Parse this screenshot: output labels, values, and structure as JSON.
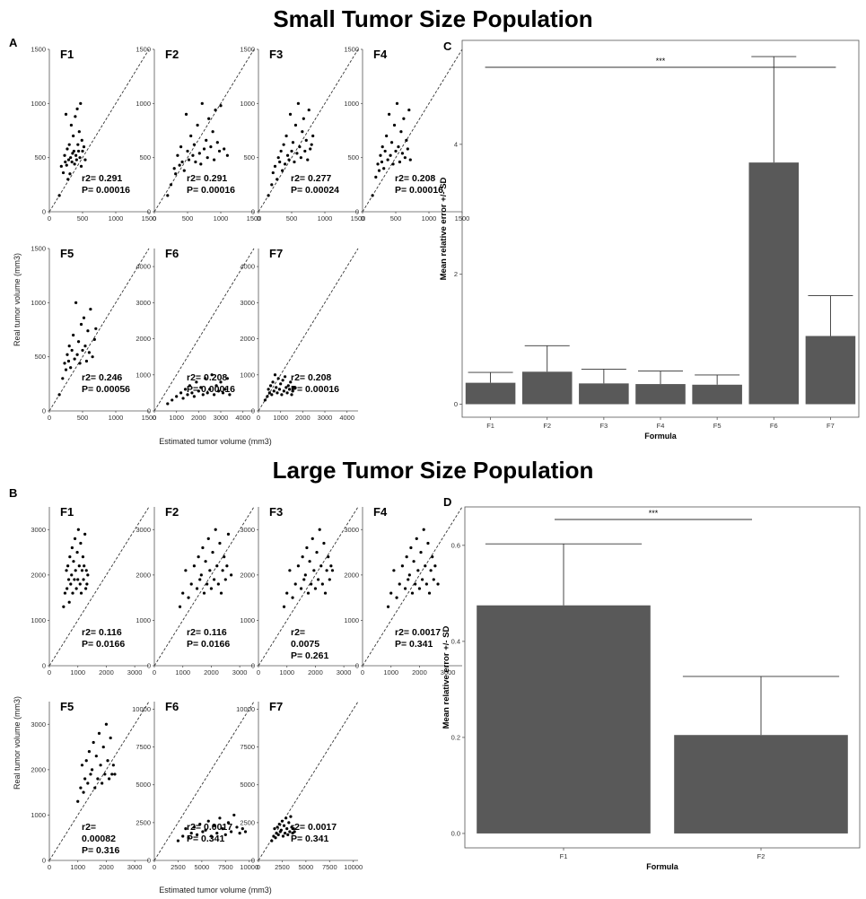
{
  "page": {
    "section_small_title": "Small Tumor Size Population",
    "section_large_title": "Large Tumor Size Population",
    "panel_a": "A",
    "panel_b": "B",
    "panel_c": "C",
    "panel_d": "D",
    "scatter_ylabel": "Real tumor volume (mm3)",
    "scatter_xlabel": "Estimated tumor volume (mm3)"
  },
  "chart_data": [
    {
      "type": "scatter",
      "group": "A",
      "panel": "F1",
      "label": "F1",
      "xlim": [
        0,
        1500
      ],
      "ylim": [
        0,
        1500
      ],
      "xticks": [
        "0",
        "500",
        "1000",
        "1500"
      ],
      "yticks": [
        "0",
        "500",
        "1000",
        "1500"
      ],
      "x": [
        150,
        180,
        210,
        230,
        240,
        250,
        260,
        270,
        280,
        290,
        300,
        310,
        320,
        330,
        340,
        350,
        360,
        370,
        380,
        390,
        400,
        410,
        420,
        430,
        440,
        450,
        460,
        470,
        480,
        490,
        500,
        520,
        540
      ],
      "y": [
        150,
        420,
        360,
        520,
        460,
        900,
        430,
        580,
        300,
        480,
        620,
        350,
        500,
        800,
        460,
        540,
        700,
        560,
        440,
        880,
        520,
        480,
        950,
        620,
        560,
        740,
        500,
        1000,
        420,
        660,
        560,
        600,
        480
      ],
      "r2": "r2= 0.291",
      "p": "P= 0.00016"
    },
    {
      "type": "scatter",
      "group": "A",
      "panel": "F2",
      "label": "F2",
      "xlim": [
        0,
        1500
      ],
      "ylim": [
        0,
        1500
      ],
      "xticks": [
        "0",
        "500",
        "1000",
        "1500"
      ],
      "yticks": [
        "0",
        "500",
        "1000",
        "1500"
      ],
      "x": [
        200,
        250,
        300,
        320,
        350,
        380,
        400,
        420,
        450,
        480,
        500,
        520,
        550,
        580,
        600,
        620,
        650,
        680,
        700,
        720,
        750,
        780,
        800,
        820,
        850,
        880,
        900,
        920,
        950,
        980,
        1000,
        1050,
        1100
      ],
      "y": [
        150,
        250,
        400,
        350,
        520,
        430,
        600,
        460,
        380,
        900,
        560,
        480,
        700,
        520,
        620,
        460,
        800,
        540,
        440,
        1000,
        580,
        660,
        500,
        860,
        600,
        740,
        480,
        940,
        640,
        560,
        980,
        580,
        520
      ],
      "r2": "r2= 0.291",
      "p": "P= 0.00016"
    },
    {
      "type": "scatter",
      "group": "A",
      "panel": "F3",
      "label": "F3",
      "xlim": [
        0,
        1500
      ],
      "ylim": [
        0,
        1500
      ],
      "xticks": [
        "0",
        "500",
        "1000",
        "1500"
      ],
      "yticks": [
        "0",
        "500",
        "1000",
        "1500"
      ],
      "x": [
        150,
        200,
        220,
        250,
        280,
        300,
        320,
        340,
        360,
        380,
        400,
        420,
        440,
        460,
        480,
        500,
        520,
        540,
        560,
        580,
        600,
        620,
        640,
        660,
        680,
        700,
        720,
        740,
        760,
        780,
        800,
        820
      ],
      "y": [
        150,
        250,
        360,
        420,
        300,
        500,
        460,
        560,
        380,
        620,
        440,
        700,
        520,
        480,
        900,
        560,
        640,
        460,
        800,
        540,
        1000,
        600,
        500,
        740,
        860,
        560,
        660,
        480,
        940,
        580,
        620,
        700
      ],
      "r2": "r2= 0.277",
      "p": "P= 0.00024"
    },
    {
      "type": "scatter",
      "group": "A",
      "panel": "F4",
      "label": "F4",
      "xlim": [
        0,
        1500
      ],
      "ylim": [
        0,
        1500
      ],
      "xticks": [
        "0",
        "500",
        "1000",
        "1500"
      ],
      "yticks": [
        "0",
        "500",
        "1000",
        "1500"
      ],
      "x": [
        150,
        200,
        230,
        250,
        270,
        290,
        300,
        320,
        340,
        360,
        380,
        400,
        420,
        440,
        460,
        480,
        500,
        520,
        540,
        560,
        580,
        600,
        620,
        640,
        660,
        680,
        700,
        720
      ],
      "y": [
        150,
        320,
        440,
        380,
        520,
        460,
        600,
        400,
        560,
        700,
        480,
        900,
        520,
        640,
        440,
        800,
        560,
        1000,
        600,
        460,
        740,
        540,
        860,
        500,
        660,
        580,
        940,
        480
      ],
      "r2": "r2= 0.208",
      "p": "P= 0.00016"
    },
    {
      "type": "scatter",
      "group": "A",
      "panel": "F5",
      "label": "F5",
      "xlim": [
        0,
        1500
      ],
      "ylim": [
        0,
        1500
      ],
      "xticks": [
        "0",
        "500",
        "1000",
        "1500"
      ],
      "yticks": [
        "0",
        "500",
        "1000",
        "1500"
      ],
      "x": [
        150,
        200,
        230,
        250,
        270,
        290,
        300,
        320,
        340,
        360,
        380,
        400,
        420,
        440,
        460,
        480,
        500,
        520,
        540,
        560,
        580,
        600,
        620,
        650,
        680,
        700
      ],
      "y": [
        150,
        300,
        440,
        380,
        520,
        460,
        600,
        400,
        560,
        700,
        480,
        1000,
        520,
        640,
        440,
        800,
        560,
        860,
        600,
        460,
        740,
        540,
        940,
        500,
        660,
        760
      ],
      "r2": "r2= 0.246",
      "p": "P= 0.00056"
    },
    {
      "type": "scatter",
      "group": "A",
      "panel": "F6",
      "label": "F6",
      "xlim": [
        0,
        4500
      ],
      "ylim": [
        0,
        4500
      ],
      "xticks": [
        "0",
        "1000",
        "2000",
        "3000",
        "4000"
      ],
      "yticks": [
        "0",
        "1000",
        "2000",
        "3000",
        "4000"
      ],
      "x": [
        600,
        800,
        1000,
        1200,
        1300,
        1400,
        1500,
        1600,
        1700,
        1800,
        1900,
        2000,
        2100,
        2200,
        2300,
        2400,
        2500,
        2600,
        2700,
        2800,
        2900,
        3000,
        3100,
        3200,
        3300,
        3400
      ],
      "y": [
        200,
        300,
        400,
        500,
        350,
        600,
        450,
        700,
        500,
        400,
        800,
        550,
        650,
        450,
        900,
        500,
        600,
        1000,
        450,
        700,
        550,
        800,
        500,
        600,
        900,
        450
      ],
      "r2": "r2= 0.208",
      "p": "P= 0.00016"
    },
    {
      "type": "scatter",
      "group": "A",
      "panel": "F7",
      "label": "F7",
      "xlim": [
        0,
        4500
      ],
      "ylim": [
        0,
        4500
      ],
      "xticks": [
        "0",
        "1000",
        "2000",
        "3000",
        "4000"
      ],
      "yticks": [
        "0",
        "1000",
        "2000",
        "3000",
        "4000"
      ],
      "x": [
        300,
        400,
        450,
        500,
        550,
        600,
        650,
        700,
        750,
        800,
        850,
        900,
        950,
        1000,
        1050,
        1100,
        1150,
        1200,
        1250,
        1300,
        1350,
        1400,
        1450,
        1500,
        1550,
        1600
      ],
      "y": [
        300,
        400,
        600,
        500,
        700,
        450,
        800,
        550,
        1000,
        650,
        500,
        900,
        600,
        750,
        450,
        850,
        550,
        950,
        650,
        500,
        700,
        600,
        800,
        450,
        550,
        650
      ],
      "r2": "r2= 0.208",
      "p": "P= 0.00016"
    },
    {
      "type": "bar",
      "group": "C",
      "panel": "C",
      "categories": [
        "F1",
        "F2",
        "F3",
        "F4",
        "F5",
        "F6",
        "F7"
      ],
      "values": [
        0.33,
        0.5,
        0.32,
        0.31,
        0.3,
        3.72,
        1.05
      ],
      "errors": [
        0.16,
        0.4,
        0.22,
        0.2,
        0.15,
        1.63,
        0.62
      ],
      "ylim": [
        -0.2,
        5.6
      ],
      "yticks": [
        "0",
        "2",
        "4"
      ],
      "xlabel": "Formula",
      "ylabel": "Mean relative error +/- SD",
      "significance": "***"
    },
    {
      "type": "scatter",
      "group": "B",
      "panel": "F1",
      "label": "F1",
      "xlim": [
        0,
        3500
      ],
      "ylim": [
        0,
        3500
      ],
      "xticks": [
        "0",
        "1000",
        "2000",
        "3000"
      ],
      "yticks": [
        "0",
        "1000",
        "2000",
        "3000"
      ],
      "x": [
        500,
        550,
        600,
        620,
        650,
        680,
        700,
        720,
        750,
        780,
        800,
        820,
        850,
        880,
        900,
        920,
        950,
        980,
        1000,
        1020,
        1050,
        1080,
        1100,
        1120,
        1150,
        1180,
        1200,
        1220,
        1250,
        1280,
        1300,
        1320,
        1350
      ],
      "y": [
        1300,
        1600,
        2100,
        1700,
        2200,
        1900,
        1400,
        2400,
        1800,
        2000,
        2600,
        1600,
        2300,
        1900,
        2800,
        2100,
        1700,
        2500,
        1900,
        3000,
        2200,
        1800,
        2700,
        1600,
        2100,
        2400,
        1900,
        2200,
        2900,
        1700,
        2100,
        1800,
        2000
      ],
      "r2": "r2= 0.116",
      "p": "P= 0.0166"
    },
    {
      "type": "scatter",
      "group": "B",
      "panel": "F2",
      "label": "F2",
      "xlim": [
        0,
        3500
      ],
      "ylim": [
        0,
        3500
      ],
      "xticks": [
        "0",
        "1000",
        "2000",
        "3000"
      ],
      "yticks": [
        "0",
        "1000",
        "2000",
        "3000"
      ],
      "x": [
        900,
        1000,
        1100,
        1200,
        1300,
        1400,
        1500,
        1550,
        1600,
        1650,
        1700,
        1750,
        1800,
        1850,
        1900,
        1950,
        2000,
        2050,
        2100,
        2150,
        2200,
        2250,
        2300,
        2350,
        2400,
        2450,
        2500,
        2550,
        2600,
        2700
      ],
      "y": [
        1300,
        1600,
        2100,
        1500,
        1800,
        2200,
        1700,
        2400,
        1900,
        2000,
        2600,
        1600,
        2300,
        1800,
        2800,
        2100,
        1700,
        2500,
        1900,
        3000,
        2200,
        1800,
        2700,
        1600,
        2100,
        2400,
        1900,
        2200,
        2900,
        2000
      ],
      "r2": "r2= 0.116",
      "p": "P= 0.0166"
    },
    {
      "type": "scatter",
      "group": "B",
      "panel": "F3",
      "label": "F3",
      "xlim": [
        0,
        3500
      ],
      "ylim": [
        0,
        3500
      ],
      "xticks": [
        "0",
        "1000",
        "2000",
        "3000"
      ],
      "yticks": [
        "0",
        "1000",
        "2000",
        "3000"
      ],
      "x": [
        900,
        1000,
        1100,
        1200,
        1300,
        1400,
        1500,
        1550,
        1600,
        1650,
        1700,
        1750,
        1800,
        1850,
        1900,
        1950,
        2000,
        2050,
        2100,
        2150,
        2200,
        2250,
        2300,
        2350,
        2400,
        2450,
        2500,
        2550,
        2600
      ],
      "y": [
        1300,
        1600,
        2100,
        1500,
        1800,
        2200,
        1700,
        2400,
        1900,
        2000,
        2600,
        1600,
        2300,
        1800,
        2800,
        2100,
        1700,
        2500,
        1900,
        3000,
        2200,
        1800,
        2700,
        1600,
        2100,
        2400,
        1900,
        2200,
        2100
      ],
      "r2": "r2=",
      "p": "0.0075",
      "p2": "P= 0.261"
    },
    {
      "type": "scatter",
      "group": "B",
      "panel": "F4",
      "label": "F4",
      "xlim": [
        0,
        3500
      ],
      "ylim": [
        0,
        3500
      ],
      "xticks": [
        "0",
        "1000",
        "2000",
        "3000"
      ],
      "yticks": [
        "0",
        "1000",
        "2000",
        "3000"
      ],
      "x": [
        900,
        1000,
        1100,
        1200,
        1300,
        1400,
        1500,
        1550,
        1600,
        1650,
        1700,
        1750,
        1800,
        1850,
        1900,
        1950,
        2000,
        2050,
        2100,
        2150,
        2200,
        2250,
        2300,
        2350,
        2400,
        2450,
        2500,
        2550,
        2650
      ],
      "y": [
        1300,
        1600,
        2100,
        1500,
        1800,
        2200,
        1700,
        2400,
        1900,
        2000,
        2600,
        1600,
        2300,
        1800,
        2800,
        2100,
        1700,
        2500,
        1900,
        3000,
        2200,
        1800,
        2700,
        1600,
        2100,
        2400,
        1900,
        2200,
        1800
      ],
      "r2": "r2= 0.0017",
      "p": "P= 0.341"
    },
    {
      "type": "scatter",
      "group": "B",
      "panel": "F5",
      "label": "F5",
      "xlim": [
        0,
        3500
      ],
      "ylim": [
        0,
        3500
      ],
      "xticks": [
        "0",
        "1000",
        "2000",
        "3000"
      ],
      "yticks": [
        "0",
        "1000",
        "2000",
        "3000"
      ],
      "x": [
        1000,
        1100,
        1150,
        1200,
        1250,
        1300,
        1350,
        1400,
        1450,
        1500,
        1550,
        1600,
        1650,
        1700,
        1750,
        1800,
        1850,
        1900,
        1950,
        2000,
        2050,
        2100,
        2150,
        2200,
        2250,
        2300
      ],
      "y": [
        1300,
        1600,
        2100,
        1500,
        1800,
        2200,
        1700,
        2400,
        1900,
        2000,
        2600,
        1600,
        2300,
        1800,
        2800,
        2100,
        1700,
        2500,
        1900,
        3000,
        2200,
        1800,
        2700,
        1900,
        2100,
        1900
      ],
      "r2": "r2=",
      "p": "0.00082",
      "p2": "P= 0.316"
    },
    {
      "type": "scatter",
      "group": "B",
      "panel": "F6",
      "label": "F6",
      "xlim": [
        0,
        10500
      ],
      "ylim": [
        0,
        10500
      ],
      "xticks": [
        "0",
        "2500",
        "5000",
        "7500",
        "10000"
      ],
      "yticks": [
        "0",
        "2500",
        "5000",
        "7500",
        "10000"
      ],
      "x": [
        2500,
        3000,
        3300,
        3600,
        3900,
        4200,
        4500,
        4800,
        5100,
        5400,
        5700,
        6000,
        6300,
        6600,
        6900,
        7200,
        7500,
        7800,
        8100,
        8400,
        8700,
        9000,
        9300,
        9600
      ],
      "y": [
        1300,
        1600,
        2100,
        1500,
        1800,
        2200,
        1700,
        2400,
        1900,
        2000,
        2600,
        1600,
        2300,
        1800,
        2800,
        2100,
        1700,
        2500,
        1900,
        3000,
        2200,
        1800,
        2100,
        1900
      ],
      "r2": "r2= 0.0017",
      "p": "P= 0.341"
    },
    {
      "type": "scatter",
      "group": "B",
      "panel": "F7",
      "label": "F7",
      "xlim": [
        0,
        10500
      ],
      "ylim": [
        0,
        10500
      ],
      "xticks": [
        "0",
        "2500",
        "5000",
        "7500",
        "10000"
      ],
      "yticks": [
        "0",
        "2500",
        "5000",
        "7500",
        "10000"
      ],
      "x": [
        1400,
        1600,
        1700,
        1800,
        1900,
        2000,
        2100,
        2200,
        2300,
        2400,
        2500,
        2600,
        2700,
        2800,
        2900,
        3000,
        3100,
        3200,
        3300,
        3400,
        3500,
        3600,
        3700,
        3800
      ],
      "y": [
        1300,
        1600,
        2100,
        1500,
        1800,
        2200,
        1700,
        2400,
        1900,
        2000,
        2600,
        1600,
        2300,
        1800,
        2800,
        2100,
        1700,
        2500,
        1900,
        2900,
        2200,
        1800,
        2100,
        1900
      ],
      "r2": "r2= 0.0017",
      "p": "P= 0.341"
    },
    {
      "type": "bar",
      "group": "D",
      "panel": "D",
      "categories": [
        "F1",
        "F2"
      ],
      "values": [
        0.475,
        0.205
      ],
      "errors": [
        0.128,
        0.122
      ],
      "ylim": [
        -0.03,
        0.68
      ],
      "yticks": [
        "0.0",
        "0.2",
        "0.4",
        "0.6"
      ],
      "xlabel": "Formula",
      "ylabel": "Mean relative error +/- SD",
      "significance": "***"
    }
  ]
}
